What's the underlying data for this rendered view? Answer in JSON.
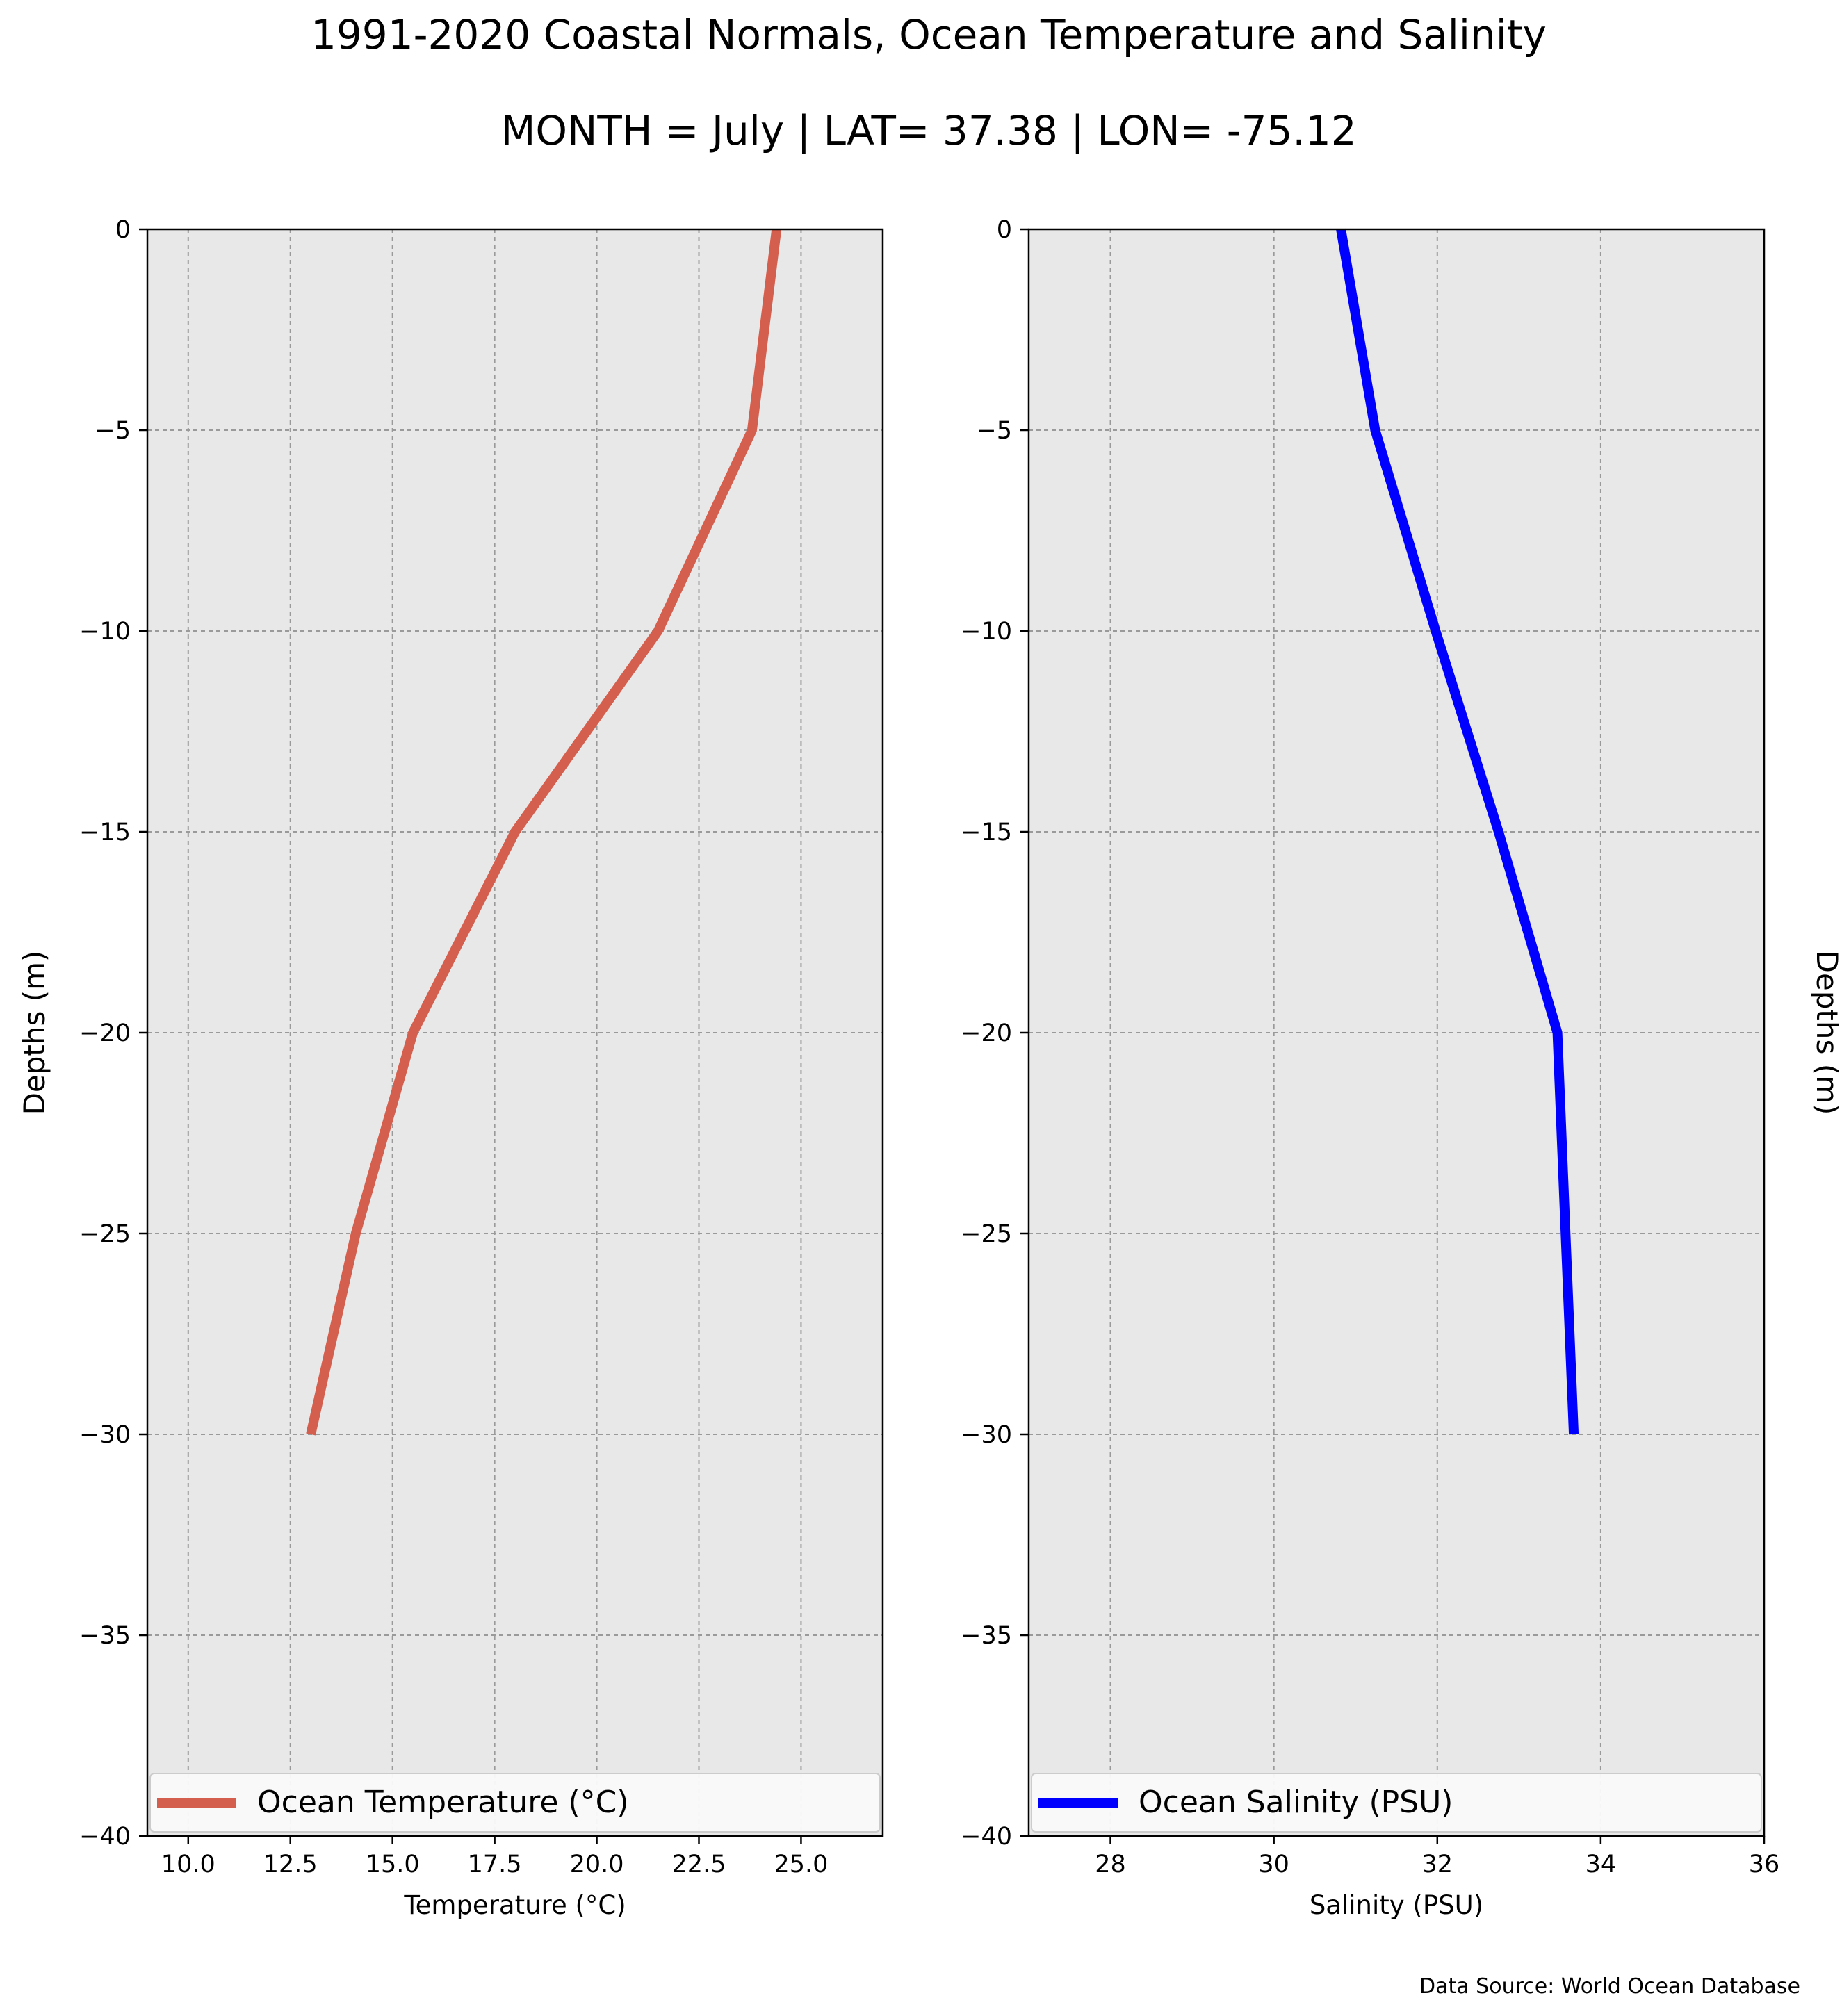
{
  "figure": {
    "title": "1991-2020 Coastal Normals, Ocean Temperature and Salinity",
    "subtitle": "MONTH = July | LAT= 37.38 | LON= -75.12",
    "source_note": "Data Source: World Ocean Database"
  },
  "chart_data": [
    {
      "type": "line",
      "xlabel": "Temperature (°C)",
      "ylabel": "Depths (m)",
      "xlim": [
        9,
        27
      ],
      "ylim": [
        -40,
        0
      ],
      "xticks": [
        10.0,
        12.5,
        15.0,
        17.5,
        20.0,
        22.5,
        25.0
      ],
      "xtick_labels": [
        "10.0",
        "12.5",
        "15.0",
        "17.5",
        "20.0",
        "22.5",
        "25.0"
      ],
      "yticks": [
        0,
        -5,
        -10,
        -15,
        -20,
        -25,
        -30,
        -35,
        -40
      ],
      "ytick_labels": [
        "0",
        "−5",
        "−10",
        "−15",
        "−20",
        "−25",
        "−30",
        "−35",
        "−40"
      ],
      "grid": true,
      "ylabel_position": "left",
      "legend_position": "bottom",
      "series": [
        {
          "name": "Ocean Temperature (°C)",
          "color": "#d45f4e",
          "x": [
            24.4,
            23.8,
            21.5,
            18.0,
            15.5,
            14.1,
            13.0
          ],
          "y": [
            0,
            -5,
            -10,
            -15,
            -20,
            -25,
            -30
          ]
        }
      ]
    },
    {
      "type": "line",
      "xlabel": "Salinity (PSU)",
      "ylabel": "Depths (m)",
      "xlim": [
        27,
        36
      ],
      "ylim": [
        -40,
        0
      ],
      "xticks": [
        28,
        30,
        32,
        34,
        36
      ],
      "xtick_labels": [
        "28",
        "30",
        "32",
        "34",
        "36"
      ],
      "yticks": [
        0,
        -5,
        -10,
        -15,
        -20,
        -25,
        -30,
        -35,
        -40
      ],
      "ytick_labels": [
        "0",
        "−5",
        "−10",
        "−15",
        "−20",
        "−25",
        "−30",
        "−35",
        "−40"
      ],
      "grid": true,
      "ylabel_position": "right",
      "legend_position": "bottom",
      "series": [
        {
          "name": "Ocean Salinity (PSU)",
          "color": "#0000ff",
          "x": [
            30.82,
            31.24,
            31.98,
            32.75,
            33.47,
            33.57,
            33.67
          ],
          "y": [
            0,
            -5,
            -10,
            -15,
            -20,
            -25,
            -30
          ]
        }
      ]
    }
  ]
}
